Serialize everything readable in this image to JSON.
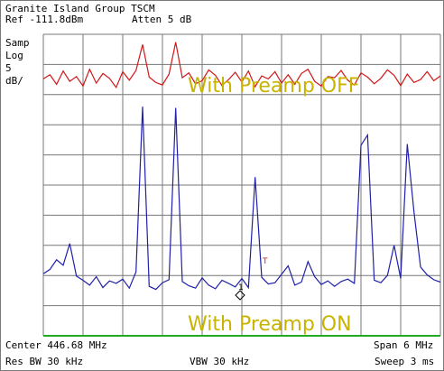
{
  "header": {
    "title": "Granite Island Group TSCM",
    "ref": "Ref -111.8dBm",
    "atten": "Atten 5 dB"
  },
  "side": {
    "samp": "Samp",
    "log": "Log",
    "scale_value": "5",
    "scale_unit": "dB/"
  },
  "footer": {
    "center": "Center 446.68 MHz",
    "span": "Span 6 MHz",
    "res_bw": "Res BW 30 kHz",
    "vbw": "VBW 30 kHz",
    "sweep": "Sweep 3 ms"
  },
  "chart_data": {
    "type": "line",
    "x_unit": "MHz",
    "xlim": [
      443.68,
      449.68
    ],
    "y_unit": "dBm",
    "ylim": [
      -161.8,
      -111.8
    ],
    "grid": true,
    "annotations": [
      "With Preamp OFF",
      "With Preamp ON"
    ],
    "markers": [
      "T",
      "1"
    ],
    "colors": {
      "preamp_off": "#d01818",
      "preamp_on": "#2020a8",
      "annotation": "#c8b400",
      "grid": "#777777"
    },
    "series": [
      {
        "x": [
          443.68,
          443.78,
          443.88,
          443.98,
          444.08,
          444.18,
          444.28,
          444.38,
          444.48,
          444.58,
          444.68,
          444.78,
          444.88,
          444.98,
          445.08,
          445.18,
          445.28,
          445.38,
          445.48,
          445.58,
          445.68,
          445.78,
          445.88,
          445.98,
          446.08,
          446.18,
          446.28,
          446.38,
          446.48,
          446.58,
          446.68,
          446.78,
          446.88,
          446.98,
          447.08,
          447.18,
          447.28,
          447.38,
          447.48,
          447.58,
          447.68,
          447.78,
          447.88,
          447.98,
          448.08,
          448.18,
          448.28,
          448.38,
          448.48,
          448.58,
          448.68,
          448.78,
          448.88,
          448.98,
          449.08,
          449.18,
          449.28,
          449.38,
          449.48,
          449.58,
          449.68
        ],
        "values": [
          -119.2,
          -118.5,
          -120.1,
          -117.9,
          -119.6,
          -118.8,
          -120.4,
          -117.6,
          -119.9,
          -118.3,
          -119.1,
          -120.6,
          -118.0,
          -119.4,
          -117.8,
          -113.5,
          -118.9,
          -119.8,
          -120.2,
          -118.4,
          -113.1,
          -119.0,
          -118.2,
          -120.0,
          -119.5,
          -117.7,
          -118.6,
          -120.3,
          -119.3,
          -118.1,
          -119.7,
          -117.9,
          -120.5,
          -118.7,
          -119.2,
          -118.0,
          -119.9,
          -118.5,
          -120.1,
          -118.3,
          -117.6,
          -119.6,
          -120.4,
          -118.8,
          -119.0,
          -117.8,
          -119.4,
          -120.2,
          -118.2,
          -118.9,
          -120.0,
          -119.1,
          -117.7,
          -118.6,
          -120.3,
          -118.4,
          -119.8,
          -119.3,
          -118.0,
          -119.5,
          -118.7
        ]
      },
      {
        "x": [
          443.68,
          443.78,
          443.88,
          443.98,
          444.08,
          444.18,
          444.28,
          444.38,
          444.48,
          444.58,
          444.68,
          444.78,
          444.88,
          444.98,
          445.08,
          445.18,
          445.28,
          445.38,
          445.48,
          445.58,
          445.68,
          445.78,
          445.88,
          445.98,
          446.08,
          446.18,
          446.28,
          446.38,
          446.48,
          446.58,
          446.68,
          446.78,
          446.88,
          446.98,
          447.08,
          447.18,
          447.28,
          447.38,
          447.48,
          447.58,
          447.68,
          447.78,
          447.88,
          447.98,
          448.08,
          448.18,
          448.28,
          448.38,
          448.48,
          448.58,
          448.68,
          448.78,
          448.88,
          448.98,
          449.08,
          449.18,
          449.28,
          449.38,
          449.48,
          449.58,
          449.68
        ],
        "values": [
          -151.5,
          -150.8,
          -149.2,
          -150.1,
          -146.5,
          -151.9,
          -152.6,
          -153.4,
          -152.0,
          -153.8,
          -152.7,
          -153.1,
          -152.4,
          -153.9,
          -151.2,
          -123.8,
          -153.6,
          -154.1,
          -153.0,
          -152.5,
          -124.0,
          -152.8,
          -153.5,
          -153.9,
          -152.2,
          -153.4,
          -154.0,
          -152.6,
          -153.1,
          -153.7,
          -152.3,
          -153.8,
          -135.5,
          -152.1,
          -153.2,
          -153.0,
          -151.6,
          -150.2,
          -153.4,
          -152.9,
          -149.5,
          -152.0,
          -153.3,
          -152.7,
          -153.6,
          -152.8,
          -152.4,
          -153.1,
          -130.2,
          -128.5,
          -152.6,
          -153.0,
          -151.8,
          -146.8,
          -152.3,
          -130.0,
          -141.2,
          -150.4,
          -151.7,
          -152.5,
          -152.9
        ]
      }
    ]
  }
}
